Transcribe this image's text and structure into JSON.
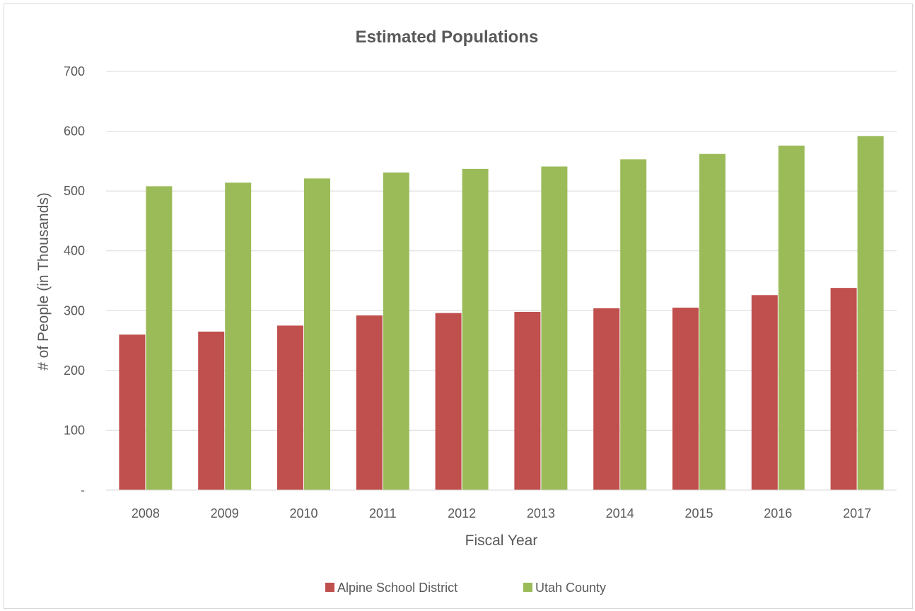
{
  "chart_data": {
    "type": "bar",
    "title": "Estimated Populations",
    "xlabel": "Fiscal Year",
    "ylabel": "# of People (in Thousands)",
    "categories": [
      "2008",
      "2009",
      "2010",
      "2011",
      "2012",
      "2013",
      "2014",
      "2015",
      "2016",
      "2017"
    ],
    "series": [
      {
        "name": "Alpine School District",
        "color": "#c0504d",
        "values": [
          260,
          265,
          275,
          292,
          296,
          298,
          304,
          305,
          326,
          338
        ]
      },
      {
        "name": "Utah County",
        "color": "#9bbb59",
        "values": [
          508,
          514,
          521,
          531,
          537,
          541,
          553,
          562,
          576,
          592
        ]
      }
    ],
    "ylim": [
      0,
      700
    ],
    "yticks": [
      {
        "value": 0,
        "label": "-"
      },
      {
        "value": 100,
        "label": "100"
      },
      {
        "value": 200,
        "label": "200"
      },
      {
        "value": 300,
        "label": "300"
      },
      {
        "value": 400,
        "label": "400"
      },
      {
        "value": 500,
        "label": "500"
      },
      {
        "value": 600,
        "label": "600"
      },
      {
        "value": 700,
        "label": "700"
      }
    ],
    "grid": true,
    "legend_position": "bottom",
    "gridline_color": "#d9d9d9"
  }
}
